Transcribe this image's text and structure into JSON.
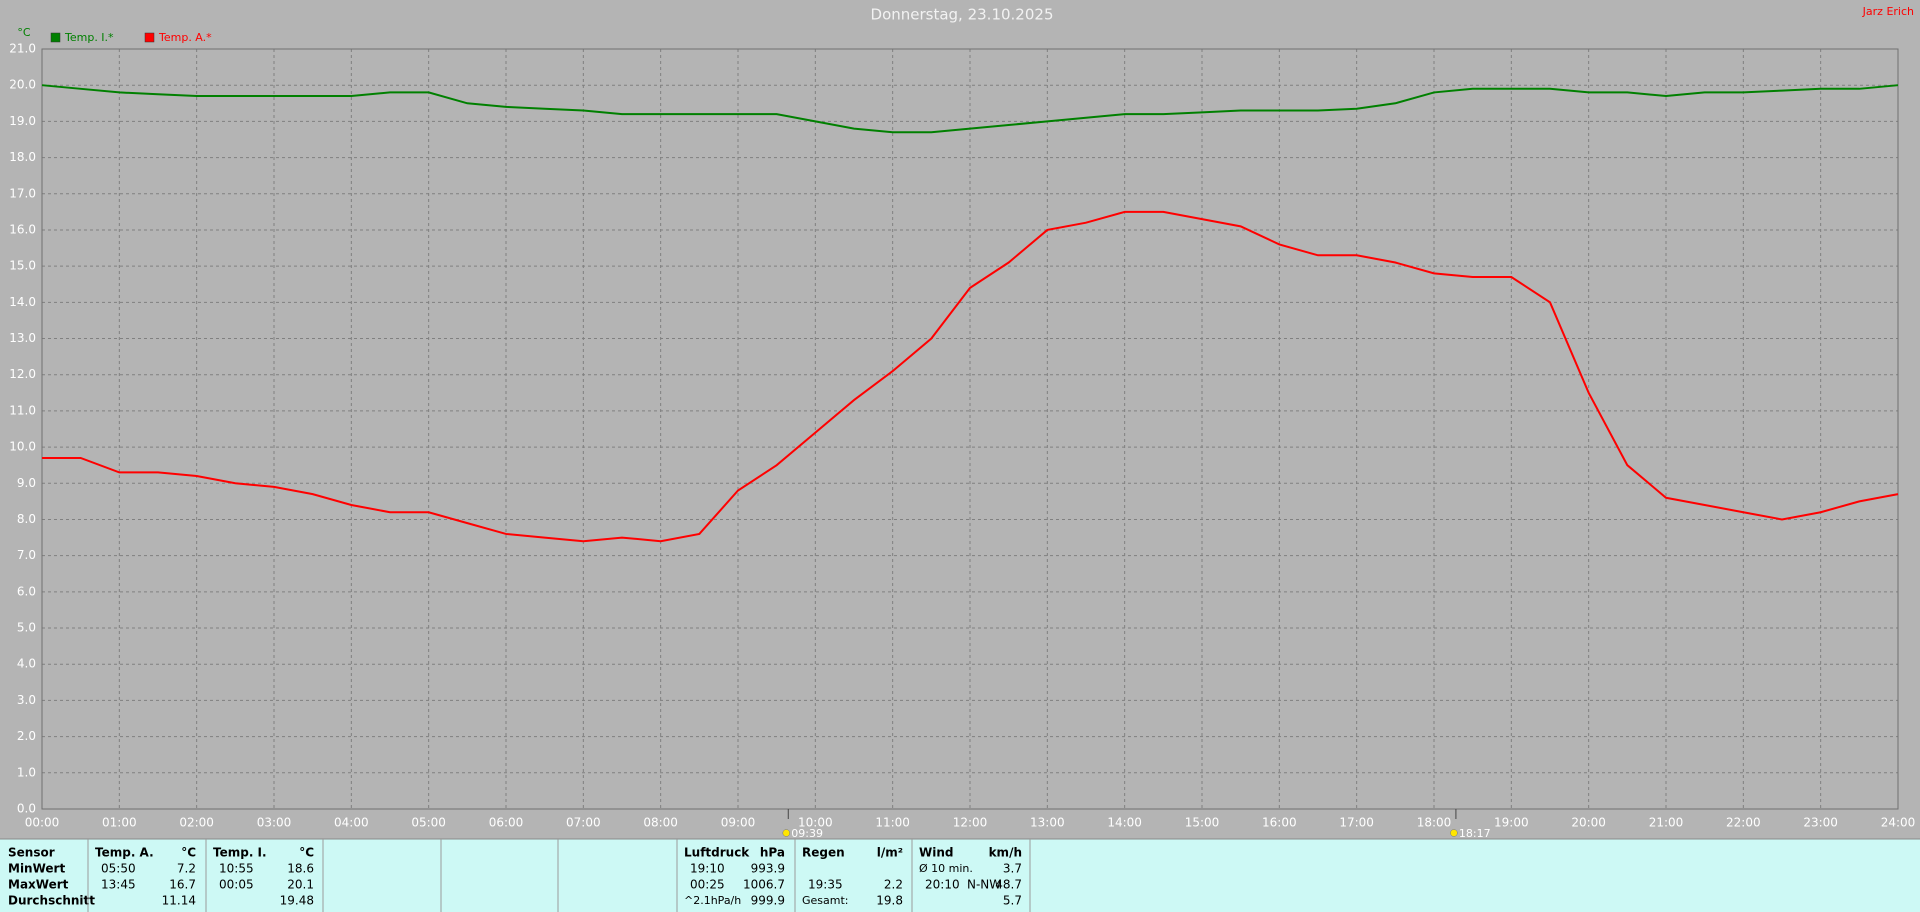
{
  "chart_data": {
    "type": "line",
    "title": "Donnerstag, 23.10.2025",
    "owner": "Jarz Erich",
    "y_unit": "°C",
    "x": [
      0,
      0.5,
      1,
      1.5,
      2,
      2.5,
      3,
      3.5,
      4,
      4.5,
      5,
      5.5,
      6,
      6.5,
      7,
      7.5,
      8,
      8.5,
      9,
      9.5,
      10,
      10.5,
      11,
      11.5,
      12,
      12.5,
      13,
      13.5,
      14,
      14.5,
      15,
      15.5,
      16,
      16.5,
      17,
      17.5,
      18,
      18.5,
      19,
      19.5,
      20,
      20.5,
      21,
      21.5,
      22,
      22.5,
      23,
      23.5,
      24
    ],
    "series": [
      {
        "name": "Temp. I.*",
        "color": "#008000",
        "values": [
          20.0,
          19.9,
          19.8,
          19.75,
          19.7,
          19.7,
          19.7,
          19.7,
          19.7,
          19.8,
          19.8,
          19.5,
          19.4,
          19.35,
          19.3,
          19.2,
          19.2,
          19.2,
          19.2,
          19.2,
          19.0,
          18.8,
          18.7,
          18.7,
          18.8,
          18.9,
          19.0,
          19.1,
          19.2,
          19.2,
          19.25,
          19.3,
          19.3,
          19.3,
          19.35,
          19.5,
          19.8,
          19.9,
          19.9,
          19.9,
          19.8,
          19.8,
          19.7,
          19.8,
          19.8,
          19.85,
          19.9,
          19.9,
          20.0
        ]
      },
      {
        "name": "Temp. A.*",
        "color": "#ff0000",
        "values": [
          9.7,
          9.7,
          9.3,
          9.3,
          9.2,
          9.0,
          8.9,
          8.7,
          8.4,
          8.2,
          8.2,
          7.9,
          7.6,
          7.5,
          7.4,
          7.5,
          7.4,
          7.6,
          8.8,
          9.5,
          10.4,
          11.3,
          12.1,
          13.0,
          14.4,
          15.1,
          16.0,
          16.2,
          16.5,
          16.5,
          16.3,
          16.1,
          15.6,
          15.3,
          15.3,
          15.1,
          14.8,
          14.7,
          14.7,
          14.0,
          11.5,
          9.5,
          8.6,
          8.4,
          8.2,
          8.0,
          8.2,
          8.5,
          8.7
        ]
      }
    ],
    "xlim": [
      0,
      24
    ],
    "xticks": [
      {
        "value": 0,
        "label": "00:00"
      },
      {
        "value": 1,
        "label": "01:00"
      },
      {
        "value": 2,
        "label": "02:00"
      },
      {
        "value": 3,
        "label": "03:00"
      },
      {
        "value": 4,
        "label": "04:00"
      },
      {
        "value": 5,
        "label": "05:00"
      },
      {
        "value": 6,
        "label": "06:00"
      },
      {
        "value": 7,
        "label": "07:00"
      },
      {
        "value": 8,
        "label": "08:00"
      },
      {
        "value": 9,
        "label": "09:00"
      },
      {
        "value": 10,
        "label": "10:00"
      },
      {
        "value": 11,
        "label": "11:00"
      },
      {
        "value": 12,
        "label": "12:00"
      },
      {
        "value": 13,
        "label": "13:00"
      },
      {
        "value": 14,
        "label": "14:00"
      },
      {
        "value": 15,
        "label": "15:00"
      },
      {
        "value": 16,
        "label": "16:00"
      },
      {
        "value": 17,
        "label": "17:00"
      },
      {
        "value": 18,
        "label": "18:00"
      },
      {
        "value": 19,
        "label": "19:00"
      },
      {
        "value": 20,
        "label": "20:00"
      },
      {
        "value": 21,
        "label": "21:00"
      },
      {
        "value": 22,
        "label": "22:00"
      },
      {
        "value": 23,
        "label": "23:00"
      },
      {
        "value": 24,
        "label": "24:00"
      }
    ],
    "ylim": [
      0,
      21
    ],
    "yticks": [
      {
        "value": 0,
        "label": "0.0"
      },
      {
        "value": 1,
        "label": "1.0"
      },
      {
        "value": 2,
        "label": "2.0"
      },
      {
        "value": 3,
        "label": "3.0"
      },
      {
        "value": 4,
        "label": "4.0"
      },
      {
        "value": 5,
        "label": "5.0"
      },
      {
        "value": 6,
        "label": "6.0"
      },
      {
        "value": 7,
        "label": "7.0"
      },
      {
        "value": 8,
        "label": "8.0"
      },
      {
        "value": 9,
        "label": "9.0"
      },
      {
        "value": 10,
        "label": "10.0"
      },
      {
        "value": 11,
        "label": "11.0"
      },
      {
        "value": 12,
        "label": "12.0"
      },
      {
        "value": 13,
        "label": "13.0"
      },
      {
        "value": 14,
        "label": "14.0"
      },
      {
        "value": 15,
        "label": "15.0"
      },
      {
        "value": 16,
        "label": "16.0"
      },
      {
        "value": 17,
        "label": "17.0"
      },
      {
        "value": 18,
        "label": "18.0"
      },
      {
        "value": 19,
        "label": "19.0"
      },
      {
        "value": 20,
        "label": "20.0"
      },
      {
        "value": 21,
        "label": "21.0"
      }
    ],
    "grid": true,
    "annotations": [
      {
        "x": 9.65,
        "label": "09:39"
      },
      {
        "x": 18.2833,
        "label": "18:17"
      }
    ]
  },
  "table": {
    "row_labels": [
      "Sensor",
      "MinWert",
      "MaxWert",
      "Durchschnitt"
    ],
    "groups": [
      {
        "header": "Temp. A.",
        "unit": "°C",
        "rows": [
          {
            "time": "05:50",
            "value": "7.2"
          },
          {
            "time": "13:45",
            "value": "16.7"
          },
          {
            "value": "11.14"
          }
        ]
      },
      {
        "header": "Temp. I.",
        "unit": "°C",
        "rows": [
          {
            "time": "10:55",
            "value": "18.6"
          },
          {
            "time": "00:05",
            "value": "20.1"
          },
          {
            "value": "19.48"
          }
        ]
      },
      {
        "header": "Luftdruck",
        "unit": "hPa",
        "rows": [
          {
            "time": "19:10",
            "value": "993.9"
          },
          {
            "time": "00:25",
            "value": "1006.7"
          },
          {
            "time": "^2.1hPa/h",
            "value": "999.9"
          }
        ]
      },
      {
        "header": "Regen",
        "unit": "l/m²",
        "rows": [
          null,
          {
            "time": "19:35",
            "value": "2.2"
          },
          {
            "time": "Gesamt:",
            "value": "19.8"
          }
        ]
      },
      {
        "header": "Wind",
        "unit": "km/h",
        "rows": [
          {
            "time": "Ø 10 min.",
            "value": "3.7"
          },
          {
            "time": "20:10",
            "dir": "N-NW",
            "value": "48.7"
          },
          {
            "value": "5.7"
          }
        ]
      }
    ]
  }
}
